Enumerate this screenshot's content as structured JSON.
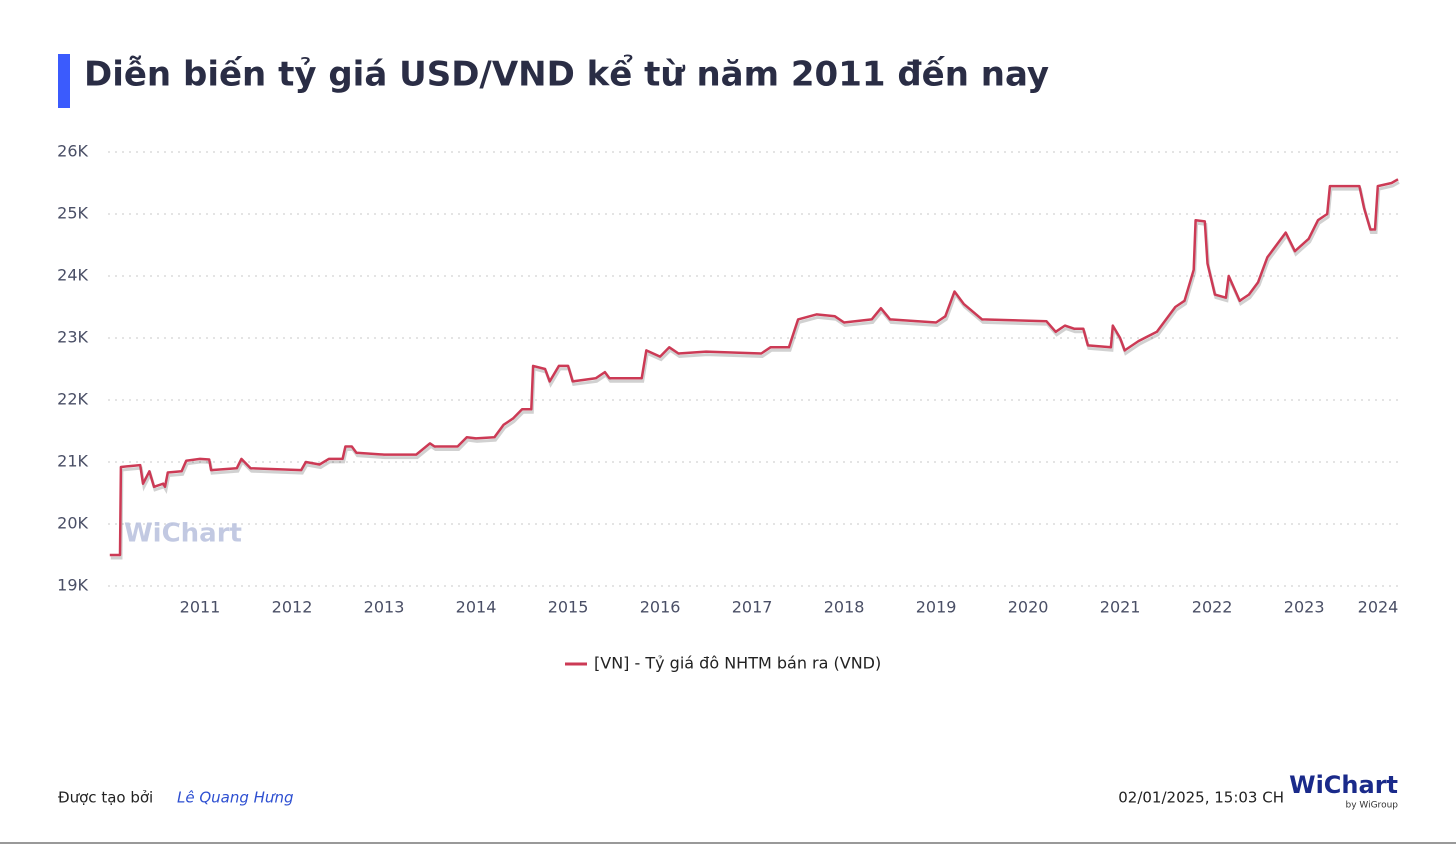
{
  "title": "Diễn biến tỷ giá USD/VND kể từ năm 2011 đến nay",
  "chart_data": {
    "type": "line",
    "watermark": "WiChart",
    "xlim": [
      2010,
      2024.02
    ],
    "xticks": [
      2011,
      2012,
      2013,
      2014,
      2015,
      2016,
      2017,
      2018,
      2019,
      2020,
      2021,
      2022,
      2023,
      2024
    ],
    "ylim": [
      19000,
      26000
    ],
    "yticks": [
      {
        "value": 19000,
        "label": "19K"
      },
      {
        "value": 20000,
        "label": "20K"
      },
      {
        "value": 21000,
        "label": "21K"
      },
      {
        "value": 22000,
        "label": "22K"
      },
      {
        "value": 23000,
        "label": "23K"
      },
      {
        "value": 24000,
        "label": "24K"
      },
      {
        "value": 25000,
        "label": "25K"
      },
      {
        "value": 26000,
        "label": "26K"
      }
    ],
    "grid": true,
    "legend": "bottom",
    "series": [
      {
        "name": "[VN] - Tỷ giá đô NHTM bán ra (VND)",
        "color": "#cc3a55",
        "x": [
          2010.02,
          2010.13,
          2010.14,
          2010.35,
          2010.38,
          2010.45,
          2010.5,
          2010.6,
          2010.62,
          2010.65,
          2010.8,
          2010.85,
          2011.0,
          2011.1,
          2011.12,
          2011.4,
          2011.45,
          2011.55,
          2012.1,
          2012.15,
          2012.3,
          2012.4,
          2012.55,
          2012.58,
          2012.65,
          2012.7,
          2013.0,
          2013.35,
          2013.5,
          2013.55,
          2013.8,
          2013.9,
          2014.0,
          2014.2,
          2014.3,
          2014.4,
          2014.5,
          2014.6,
          2014.62,
          2014.75,
          2014.8,
          2014.9,
          2015.0,
          2015.05,
          2015.3,
          2015.4,
          2015.45,
          2015.8,
          2015.85,
          2016.0,
          2016.1,
          2016.2,
          2016.5,
          2017.1,
          2017.2,
          2017.4,
          2017.5,
          2017.7,
          2017.9,
          2018.0,
          2018.3,
          2018.4,
          2018.5,
          2019.0,
          2019.1,
          2019.2,
          2019.3,
          2019.5,
          2020.2,
          2020.3,
          2020.4,
          2020.5,
          2020.6,
          2020.65,
          2020.9,
          2020.92,
          2021.0,
          2021.05,
          2021.2,
          2021.4,
          2021.5,
          2021.6,
          2021.7,
          2021.8,
          2021.82,
          2021.92,
          2021.95,
          2022.03,
          2022.15,
          2022.18,
          2022.3,
          2022.4,
          2022.5,
          2022.6,
          2022.8,
          2022.9,
          2023.05,
          2023.15,
          2023.25,
          2023.28,
          2023.6,
          2023.65,
          2023.72,
          2023.77,
          2023.8,
          2023.95,
          2024.02
        ],
        "values": [
          19500,
          19500,
          20920,
          20950,
          20650,
          20850,
          20600,
          20650,
          20600,
          20830,
          20850,
          21020,
          21050,
          21040,
          20870,
          20900,
          21050,
          20900,
          20870,
          21000,
          20960,
          21050,
          21050,
          21250,
          21250,
          21150,
          21120,
          21120,
          21300,
          21250,
          21250,
          21400,
          21380,
          21400,
          21600,
          21700,
          21850,
          21850,
          22550,
          22500,
          22300,
          22550,
          22550,
          22300,
          22350,
          22450,
          22350,
          22350,
          22800,
          22700,
          22850,
          22750,
          22780,
          22750,
          22850,
          22850,
          23300,
          23380,
          23350,
          23250,
          23300,
          23480,
          23300,
          23250,
          23350,
          23750,
          23550,
          23300,
          23270,
          23100,
          23200,
          23150,
          23150,
          22880,
          22850,
          23200,
          23000,
          22800,
          22950,
          23100,
          23300,
          23500,
          23600,
          24100,
          24900,
          24880,
          24200,
          23700,
          23650,
          24000,
          23600,
          23700,
          23900,
          24300,
          24700,
          24400,
          24600,
          24900,
          25000,
          25450,
          25450,
          25100,
          24750,
          24750,
          25450,
          25500,
          25560
        ]
      }
    ]
  },
  "footer": {
    "created_by": "Được tạo bởi",
    "author": "Lê Quang Hưng",
    "timestamp": "02/01/2025, 15:03 CH",
    "logo": "WiChart",
    "logo_sub": "by WiGroup"
  }
}
